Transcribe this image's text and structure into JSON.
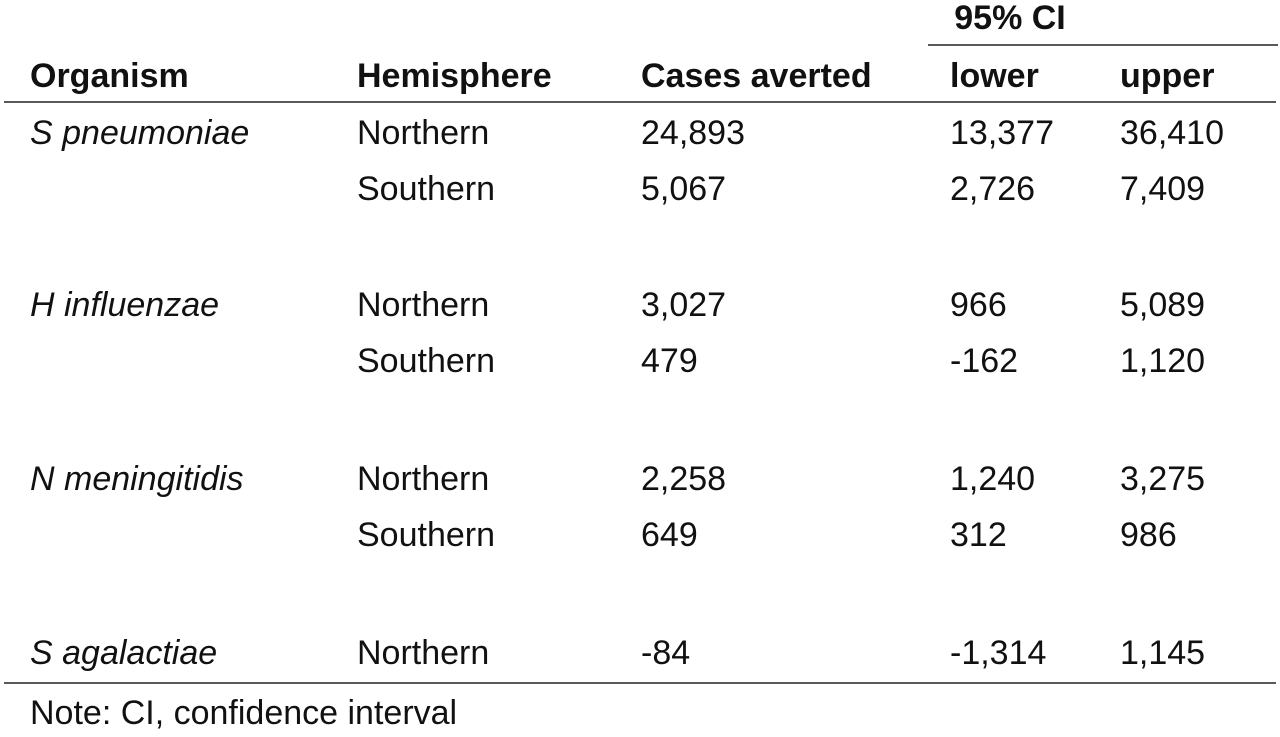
{
  "table": {
    "span_header": "95% CI",
    "columns": [
      "Organism",
      "Hemisphere",
      "Cases averted",
      "lower",
      "upper"
    ],
    "groups": [
      {
        "organism": "S pneumoniae",
        "rows": [
          [
            "Northern",
            "24,893",
            "13,377",
            "36,410"
          ],
          [
            "Southern",
            "5,067",
            "2,726",
            "7,409"
          ]
        ]
      },
      {
        "organism": "H influenzae",
        "rows": [
          [
            "Northern",
            "3,027",
            "966",
            "5,089"
          ],
          [
            "Southern",
            "479",
            "-162",
            "1,120"
          ]
        ]
      },
      {
        "organism": "N meningitidis",
        "rows": [
          [
            "Northern",
            "2,258",
            "1,240",
            "3,275"
          ],
          [
            "Southern",
            "649",
            "312",
            "986"
          ]
        ]
      },
      {
        "organism": "S agalactiae",
        "rows": [
          [
            "Northern",
            "-84",
            "-1,314",
            "1,145"
          ]
        ]
      }
    ],
    "note": "Note: CI, confidence interval"
  }
}
